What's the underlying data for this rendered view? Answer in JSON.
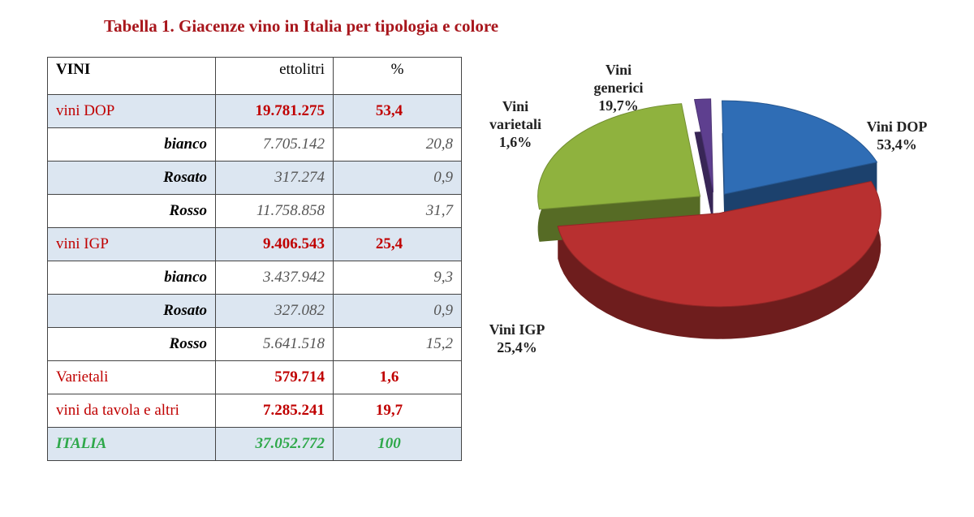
{
  "title": "Tabella 1. Giacenze vino in Italia per tipologia e colore",
  "table": {
    "header": [
      "VINI",
      "ettolitri",
      "%"
    ],
    "rows": [
      [
        "vini DOP",
        "19.781.275",
        "53,4"
      ],
      [
        "bianco",
        "7.705.142",
        "20,8"
      ],
      [
        "Rosato",
        "317.274",
        "0,9"
      ],
      [
        "Rosso",
        "11.758.858",
        "31,7"
      ],
      [
        "vini IGP",
        "9.406.543",
        "25,4"
      ],
      [
        "bianco",
        "3.437.942",
        "9,3"
      ],
      [
        "Rosato",
        "327.082",
        "0,9"
      ],
      [
        "Rosso",
        "5.641.518",
        "15,2"
      ],
      [
        "Varietali",
        "579.714",
        "1,6"
      ],
      [
        "vini da tavola e altri",
        "7.285.241",
        "19,7"
      ],
      [
        "ITALIA",
        "37.052.772",
        "100"
      ]
    ]
  },
  "chart_data": {
    "type": "pie",
    "categories": [
      "Vini DOP",
      "Vini IGP",
      "Vini varietali",
      "Vini generici"
    ],
    "values": [
      53.4,
      25.4,
      1.6,
      19.7
    ],
    "value_labels": [
      "53,4%",
      "25,4%",
      "1,6%",
      "19,7%"
    ],
    "colors": [
      "#b83030",
      "#8fb23e",
      "#5e3f8f",
      "#2f6db5"
    ]
  }
}
